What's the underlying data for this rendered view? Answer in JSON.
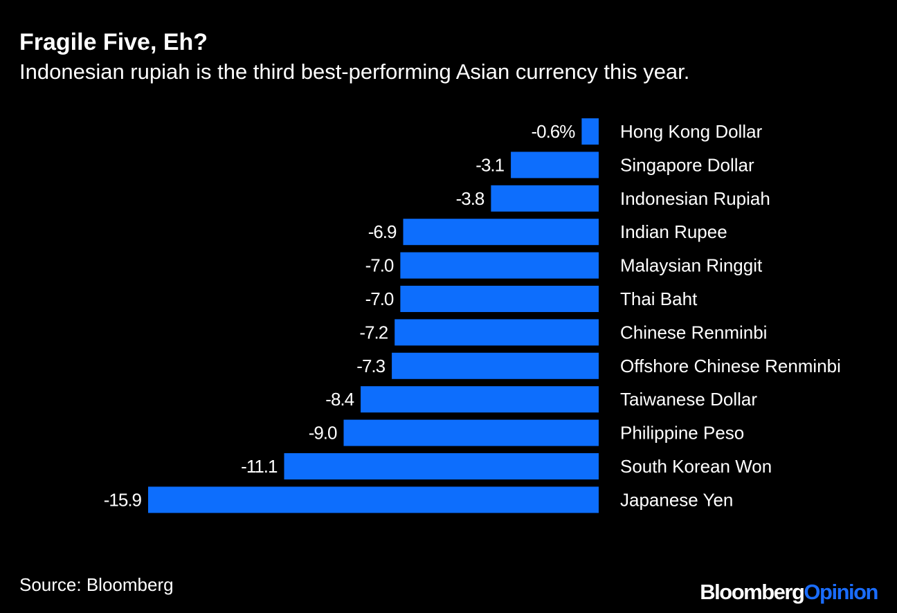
{
  "title": "Fragile Five, Eh?",
  "subtitle": "Indonesian rupiah is the third best-performing Asian currency this year.",
  "source": "Source: Bloomberg",
  "brand": {
    "part1": "Bloomberg",
    "part2": "Opinion"
  },
  "colors": {
    "bar": "#0d6efd",
    "background": "#000000",
    "text": "#ffffff",
    "brand_accent": "#1a6dff"
  },
  "chart_data": {
    "type": "bar",
    "orientation": "horizontal",
    "categories": [
      "Hong Kong Dollar",
      "Singapore Dollar",
      "Indonesian Rupiah",
      "Indian Rupee",
      "Malaysian Ringgit",
      "Thai Baht",
      "Chinese Renminbi",
      "Offshore Chinese Renminbi",
      "Taiwanese Dollar",
      "Philippine Peso",
      "South Korean Won",
      "Japanese Yen"
    ],
    "values": [
      -0.6,
      -3.1,
      -3.8,
      -6.9,
      -7.0,
      -7.0,
      -7.2,
      -7.3,
      -8.4,
      -9.0,
      -11.1,
      -15.9
    ],
    "labels": [
      "-0.6%",
      "-3.1",
      "-3.8",
      "-6.9",
      "-7.0",
      "-7.0",
      "-7.2",
      "-7.3",
      "-8.4",
      "-9.0",
      "-11.1",
      "-15.9"
    ],
    "xlim": [
      -16,
      0
    ],
    "title": "Fragile Five, Eh?",
    "xlabel": "",
    "ylabel": "",
    "grid": false,
    "legend": "none"
  }
}
